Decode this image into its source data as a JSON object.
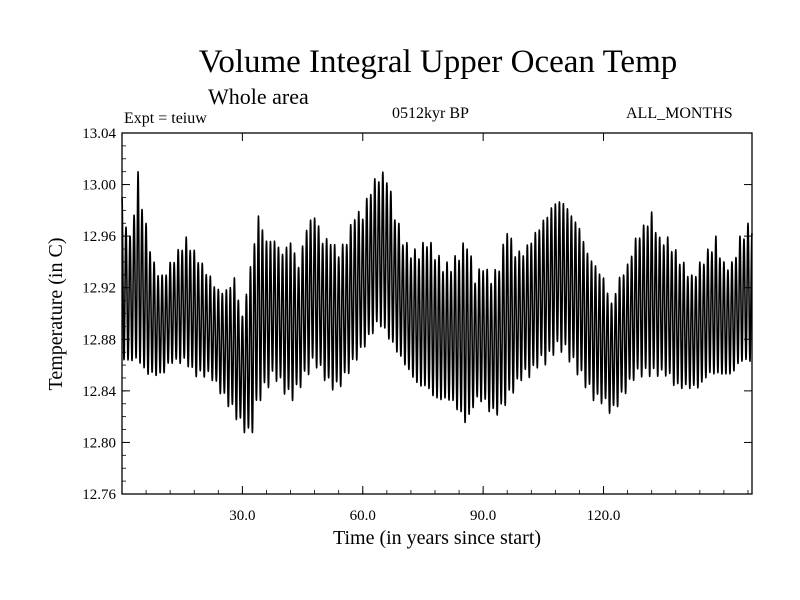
{
  "header": {
    "title": "Volume Integral Upper Ocean Temp",
    "subtitle": "Whole area",
    "experiment": "Expt = teiuw",
    "period": "0512kyr BP",
    "months": "ALL_MONTHS"
  },
  "colors": {
    "line": "#000000",
    "frame": "#000000",
    "background": "#ffffff"
  },
  "chart_data": {
    "type": "line",
    "title": "Volume Integral Upper Ocean Temp",
    "subtitle": "Whole area",
    "xlabel": "Time (in years since start)",
    "ylabel": "Temperature (in C)",
    "xlim": [
      0,
      157
    ],
    "ylim": [
      12.76,
      13.04
    ],
    "x_ticks": [
      30,
      60,
      90,
      120
    ],
    "x_tick_labels": [
      "30.0",
      "60.0",
      "90.0",
      "120.0"
    ],
    "y_ticks": [
      12.76,
      12.8,
      12.84,
      12.88,
      12.92,
      12.96,
      13.0,
      13.04
    ],
    "y_tick_labels": [
      "12.76",
      "12.80",
      "12.84",
      "12.88",
      "12.92",
      "12.96",
      "13.00",
      "13.04"
    ],
    "grid": false,
    "sampling": "monthly with annual cycle",
    "series": [
      {
        "name": "ALL_MONTHS",
        "x": [
          0,
          2,
          4,
          6,
          8,
          10,
          12,
          14,
          16,
          18,
          20,
          22,
          24,
          26,
          28,
          30,
          32,
          34,
          36,
          38,
          40,
          42,
          44,
          46,
          48,
          50,
          52,
          54,
          56,
          58,
          60,
          62,
          64,
          66,
          68,
          70,
          72,
          74,
          76,
          78,
          80,
          82,
          84,
          86,
          88,
          90,
          92,
          94,
          96,
          98,
          100,
          102,
          104,
          106,
          108,
          110,
          112,
          114,
          116,
          118,
          120,
          122,
          124,
          126,
          128,
          130,
          132,
          134,
          136,
          138,
          140,
          142,
          144,
          146,
          148,
          150,
          152,
          154,
          156
        ],
        "annual_max": [
          12.99,
          12.96,
          13.01,
          12.97,
          12.94,
          12.93,
          12.94,
          12.95,
          12.96,
          12.95,
          12.94,
          12.93,
          12.92,
          12.92,
          12.93,
          12.9,
          12.94,
          12.98,
          12.96,
          12.96,
          12.95,
          12.96,
          12.94,
          12.97,
          12.98,
          12.96,
          12.96,
          12.95,
          12.96,
          12.98,
          12.98,
          13.0,
          13.01,
          13.01,
          12.98,
          12.96,
          12.95,
          12.95,
          12.96,
          12.95,
          12.94,
          12.94,
          12.95,
          12.96,
          12.93,
          12.94,
          12.93,
          12.94,
          12.97,
          12.95,
          12.95,
          12.96,
          12.97,
          12.98,
          12.99,
          12.99,
          12.98,
          12.97,
          12.95,
          12.94,
          12.93,
          12.91,
          12.93,
          12.94,
          12.96,
          12.97,
          12.98,
          12.96,
          12.96,
          12.95,
          12.94,
          12.93,
          12.94,
          12.95,
          12.96,
          12.94,
          12.94,
          12.96,
          12.97
        ],
        "annual_min": [
          12.86,
          12.86,
          12.86,
          12.85,
          12.85,
          12.85,
          12.86,
          12.86,
          12.86,
          12.85,
          12.85,
          12.85,
          12.84,
          12.83,
          12.82,
          12.81,
          12.8,
          12.83,
          12.84,
          12.85,
          12.84,
          12.83,
          12.84,
          12.85,
          12.86,
          12.85,
          12.84,
          12.84,
          12.85,
          12.86,
          12.87,
          12.88,
          12.89,
          12.88,
          12.87,
          12.86,
          12.85,
          12.84,
          12.84,
          12.83,
          12.83,
          12.83,
          12.82,
          12.81,
          12.83,
          12.83,
          12.82,
          12.82,
          12.83,
          12.84,
          12.85,
          12.85,
          12.86,
          12.86,
          12.87,
          12.87,
          12.86,
          12.85,
          12.84,
          12.83,
          12.83,
          12.82,
          12.83,
          12.84,
          12.85,
          12.85,
          12.85,
          12.85,
          12.85,
          12.84,
          12.84,
          12.84,
          12.84,
          12.85,
          12.85,
          12.85,
          12.85,
          12.86,
          12.86
        ]
      }
    ]
  }
}
